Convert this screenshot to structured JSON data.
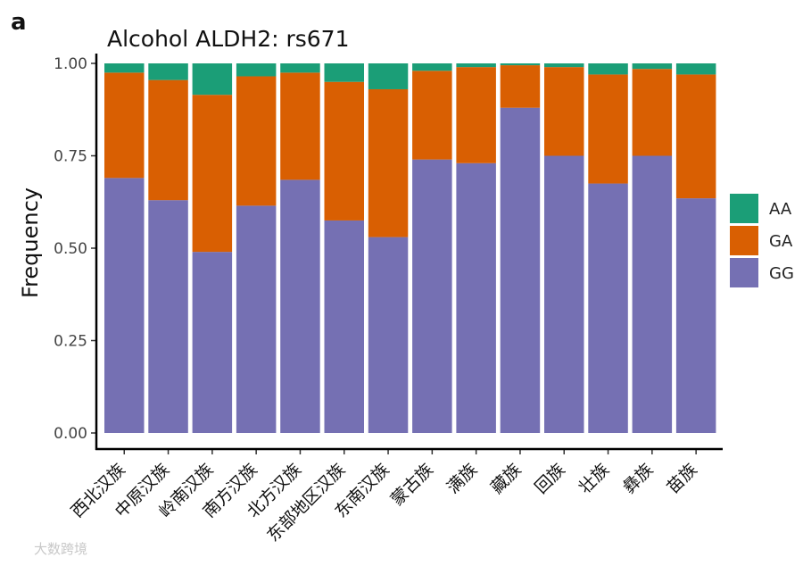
{
  "panel_label": "a",
  "watermark": "大数跨境",
  "colors": {
    "AA": "#1b9e77",
    "GA": "#d95f02",
    "GG": "#7570b3"
  },
  "chart_data": {
    "type": "bar",
    "stacked": true,
    "title": "Alcohol ALDH2: rs671",
    "xlabel": "",
    "ylabel": "Frequency",
    "ylim": [
      0,
      1
    ],
    "yticks": [
      "0.00",
      "0.25",
      "0.50",
      "0.75",
      "1.00"
    ],
    "legend": "right",
    "categories": [
      "西北汉族",
      "中原汉族",
      "岭南汉族",
      "南方汉族",
      "北方汉族",
      "东部地区汉族",
      "东南汉族",
      "蒙古族",
      "满族",
      "藏族",
      "回族",
      "壮族",
      "彝族",
      "苗族"
    ],
    "series": [
      {
        "name": "GG",
        "values": [
          0.69,
          0.63,
          0.49,
          0.615,
          0.685,
          0.575,
          0.53,
          0.74,
          0.73,
          0.88,
          0.75,
          0.675,
          0.75,
          0.635
        ]
      },
      {
        "name": "GA",
        "values": [
          0.285,
          0.325,
          0.425,
          0.35,
          0.29,
          0.375,
          0.4,
          0.24,
          0.26,
          0.115,
          0.24,
          0.295,
          0.235,
          0.335
        ]
      },
      {
        "name": "AA",
        "values": [
          0.025,
          0.045,
          0.085,
          0.035,
          0.025,
          0.05,
          0.07,
          0.02,
          0.01,
          0.005,
          0.01,
          0.03,
          0.015,
          0.03
        ]
      }
    ],
    "legend_order": [
      "AA",
      "GA",
      "GG"
    ]
  }
}
